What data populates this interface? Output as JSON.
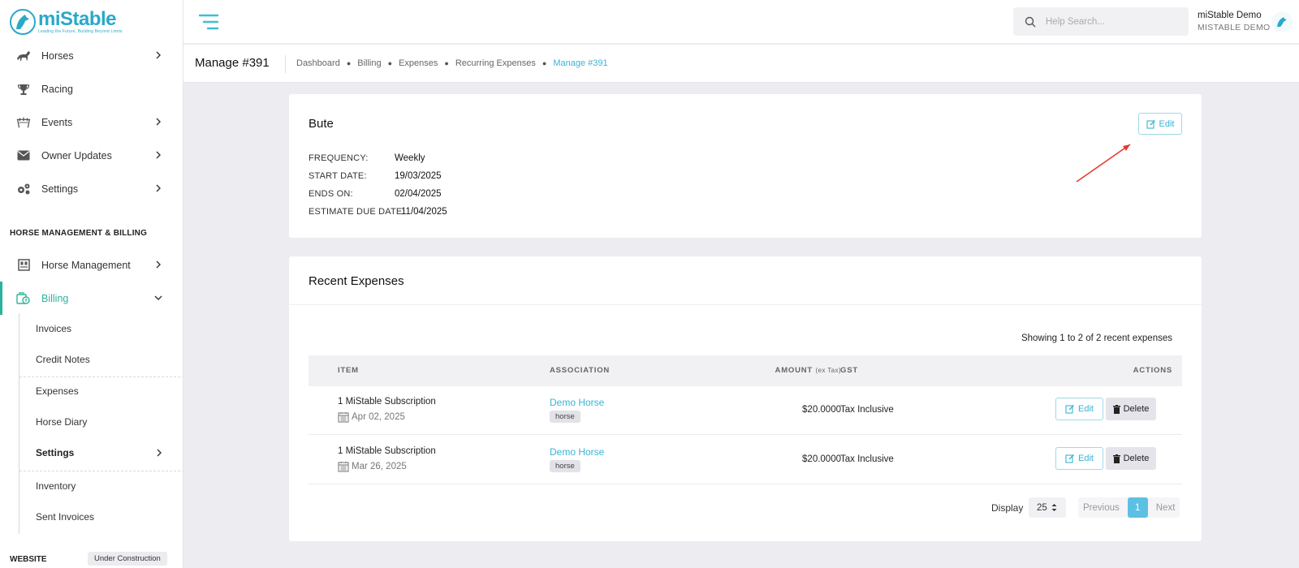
{
  "app": {
    "brand": "miStable",
    "tagline": "Leading the Future, Building Beyond Limits"
  },
  "sidebar": {
    "items": [
      {
        "label": "Horses",
        "icon": "horse-icon",
        "has_chevron": true
      },
      {
        "label": "Racing",
        "icon": "trophy-icon",
        "has_chevron": false
      },
      {
        "label": "Events",
        "icon": "events-icon",
        "has_chevron": true
      },
      {
        "label": "Owner Updates",
        "icon": "envelope-icon",
        "has_chevron": true
      },
      {
        "label": "Settings",
        "icon": "gears-icon",
        "has_chevron": true
      }
    ],
    "section_label": "HORSE MANAGEMENT & BILLING",
    "management_items": [
      {
        "label": "Horse Management",
        "icon": "stable-icon",
        "has_chevron": true
      },
      {
        "label": "Billing",
        "icon": "billing-icon",
        "has_chevron": true,
        "expanded": true
      }
    ],
    "billing_sub_items": [
      {
        "label": "Invoices"
      },
      {
        "label": "Credit Notes"
      },
      {
        "label": "Expenses"
      },
      {
        "label": "Horse Diary"
      },
      {
        "label": "Settings",
        "has_chevron": true
      },
      {
        "label": "Inventory"
      },
      {
        "label": "Sent Invoices"
      }
    ],
    "website_label": "WEBSITE",
    "website_badge": "Under Construction",
    "accent_color": "#2bb39b"
  },
  "topbar": {
    "search_placeholder": "Help Search...",
    "user_name": "miStable Demo",
    "user_org": "MISTABLE DEMO"
  },
  "page": {
    "title": "Manage #391",
    "breadcrumb": [
      "Dashboard",
      "Billing",
      "Expenses",
      "Recurring Expenses",
      "Manage #391"
    ],
    "link_color": "#3ab3d6"
  },
  "expense": {
    "name": "Bute",
    "edit_label": "Edit",
    "fields": [
      {
        "label": "FREQUENCY:",
        "value": "Weekly"
      },
      {
        "label": "START DATE:",
        "value": "19/03/2025"
      },
      {
        "label": "ENDS ON:",
        "value": "02/04/2025"
      },
      {
        "label": "ESTIMATE DUE DATE:",
        "value": "11/04/2025"
      }
    ]
  },
  "recent": {
    "title": "Recent Expenses",
    "showing": "Showing 1 to 2 of 2 recent expenses",
    "columns": {
      "item": "ITEM",
      "association": "ASSOCIATION",
      "amount": "AMOUNT",
      "amount_note": "(ex Tax)",
      "gst": "GST",
      "actions": "ACTIONS"
    },
    "rows": [
      {
        "item": "1 MiStable Subscription",
        "date": "Apr 02, 2025",
        "association": "Demo Horse",
        "tag": "horse",
        "amount": "$20.0000",
        "gst": "Tax Inclusive",
        "edit": "Edit",
        "delete": "Delete"
      },
      {
        "item": "1 MiStable Subscription",
        "date": "Mar 26, 2025",
        "association": "Demo Horse",
        "tag": "horse",
        "amount": "$20.0000",
        "gst": "Tax Inclusive",
        "edit": "Edit",
        "delete": "Delete"
      }
    ],
    "display_label": "Display",
    "display_value": "25",
    "pagination": {
      "previous": "Previous",
      "current": "1",
      "next": "Next"
    }
  }
}
